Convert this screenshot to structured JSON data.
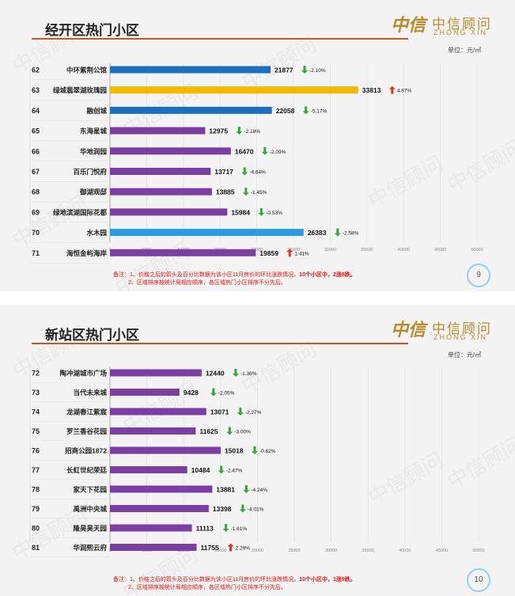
{
  "slides": [
    {
      "title": "经开区热门小区",
      "unit": "单位：元/㎡",
      "logo": {
        "mark": "中信",
        "cn": "中信顾问",
        "en": "ZHONG XIN"
      },
      "watermark": "中信顾问",
      "notes": {
        "line1_prefix": "备注：1、价格之后的箭头及百分比数据为该小区11月房价的环比涨跌情况，",
        "line1_bold": "10个小区中，2涨8跌。",
        "line2": "2、区域排序按统计局相应顺序，各区域热门小区排序不分先后。"
      },
      "page_number": "9",
      "chart_data": {
        "type": "bar",
        "orientation": "horizontal",
        "ranks": [
          "62",
          "63",
          "64",
          "65",
          "66",
          "67",
          "68",
          "69",
          "70",
          "71"
        ],
        "categories": [
          "中环紫荆公馆",
          "绿城翡翠湖玫瑰园",
          "融创城",
          "东海星城",
          "华地润园",
          "百乐门悦府",
          "御湖观邸",
          "绿地滨湖国际花都",
          "水木园",
          "海恒金屿海岸"
        ],
        "values": [
          21877,
          33813,
          22058,
          12975,
          16470,
          13717,
          13885,
          15984,
          26383,
          19859
        ],
        "changes": [
          "-2.10%",
          "4.87%",
          "-5.17%",
          "-2.18%",
          "-2.09%",
          "-4.64%",
          "-1.45%",
          "-0.53%",
          "-2.58%",
          "1.41%"
        ],
        "directions": [
          "down",
          "up",
          "down",
          "down",
          "down",
          "down",
          "down",
          "down",
          "down",
          "up"
        ],
        "bar_colors": [
          "#1f6fb8",
          "#f4b800",
          "#1f6fb8",
          "#7a3fa0",
          "#7a3fa0",
          "#7a3fa0",
          "#7a3fa0",
          "#7a3fa0",
          "#2a9de0",
          "#7a3fa0"
        ],
        "xlim": [
          0,
          50000
        ],
        "xticks": [
          "0",
          "5000",
          "10000",
          "15000",
          "20000",
          "25000",
          "30000",
          "35000",
          "40000",
          "45000",
          "50000"
        ]
      }
    },
    {
      "title": "新站区热门小区",
      "unit": "单位：元/㎡",
      "logo": {
        "mark": "中信",
        "cn": "中信顾问",
        "en": "ZHONG XIN"
      },
      "watermark": "中信顾问",
      "notes": {
        "line1_prefix": "备注：1、价格之后的箭头及百分比数据为该小区11月房价的环比涨跌情况，",
        "line1_bold": "10个小区中，1涨9跌。",
        "line2": "2、区域排序按统计局相应顺序，各区域热门小区排序不分先后。"
      },
      "page_number": "10",
      "chart_data": {
        "type": "bar",
        "orientation": "horizontal",
        "ranks": [
          "72",
          "73",
          "74",
          "75",
          "76",
          "77",
          "78",
          "79",
          "80",
          "81"
        ],
        "categories": [
          "陶冲湖城市广场",
          "当代未来城",
          "龙湖春江紫宸",
          "罗兰香谷花园",
          "招商公园1872",
          "长虹世纪荣廷",
          "家天下花园",
          "禹洲中央城",
          "隆昊昊天园",
          "华润熙云府"
        ],
        "values": [
          12440,
          9428,
          13071,
          11625,
          15018,
          10484,
          13881,
          13398,
          11113,
          11755
        ],
        "changes": [
          "-1.36%",
          "-2.05%",
          "-2.27%",
          "-3.00%",
          "-0.62%",
          "-2.47%",
          "-4.24%",
          "-4.01%",
          "-1.61%",
          "2.29%"
        ],
        "directions": [
          "down",
          "down",
          "down",
          "down",
          "down",
          "down",
          "down",
          "down",
          "down",
          "up"
        ],
        "bar_colors": [
          "#7a3fa0",
          "#7a3fa0",
          "#7a3fa0",
          "#7a3fa0",
          "#7a3fa0",
          "#7a3fa0",
          "#7a3fa0",
          "#7a3fa0",
          "#7a3fa0",
          "#7a3fa0"
        ],
        "xlim": [
          0,
          50000
        ],
        "xticks": [
          "0",
          "5000",
          "10000",
          "15000",
          "20000",
          "25000",
          "30000",
          "35000",
          "40000",
          "45000",
          "50000"
        ]
      }
    }
  ]
}
